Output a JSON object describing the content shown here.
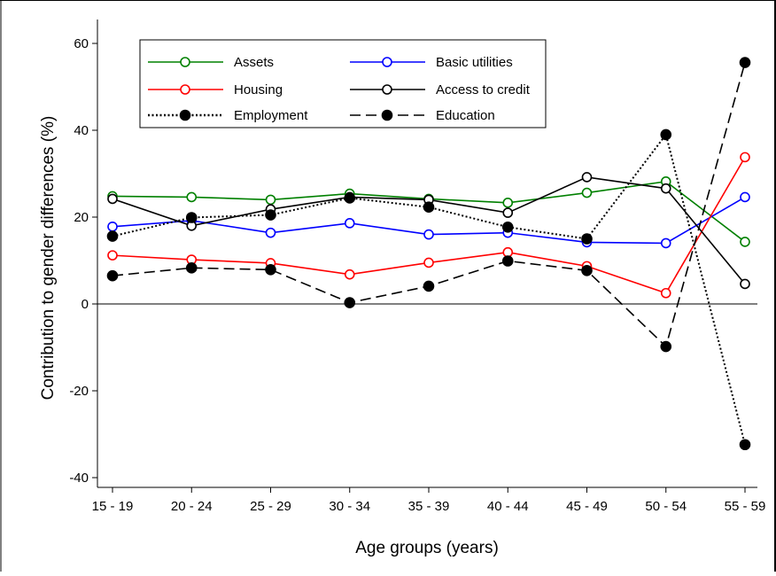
{
  "chart_data": {
    "type": "line",
    "xlabel": "Age groups (years)",
    "ylabel": "Contribution to gender differences (%)",
    "categories": [
      "15 - 19",
      "20 - 24",
      "25 - 29",
      "30 - 34",
      "35 - 39",
      "40 - 44",
      "45 - 49",
      "50 - 54",
      "55 - 59"
    ],
    "ylim": [
      -40,
      60
    ],
    "yticks": [
      -40,
      -20,
      0,
      20,
      40,
      60
    ],
    "ytick_labels": [
      "-40",
      "-20",
      "0",
      "20",
      "40",
      "60"
    ],
    "reference_line": 0,
    "grid": false,
    "legend_position": "top-left",
    "series": [
      {
        "name": "Assets",
        "color": "#008000",
        "marker": "open-circle",
        "line": "solid",
        "values": [
          24.8,
          24.6,
          24.0,
          25.4,
          24.2,
          23.3,
          25.6,
          28.2,
          14.3
        ]
      },
      {
        "name": "Basic utilities",
        "color": "#0000ff",
        "marker": "open-circle",
        "line": "solid",
        "values": [
          17.8,
          19.2,
          16.4,
          18.6,
          16.0,
          16.4,
          14.2,
          14.0,
          24.6
        ]
      },
      {
        "name": "Housing",
        "color": "#ff0000",
        "marker": "open-circle",
        "line": "solid",
        "values": [
          11.2,
          10.2,
          9.4,
          6.8,
          9.5,
          11.9,
          8.7,
          2.5,
          33.8
        ]
      },
      {
        "name": "Access to credit",
        "color": "#000000",
        "marker": "open-circle",
        "line": "solid",
        "values": [
          24.2,
          18.0,
          21.8,
          24.6,
          24.0,
          21.0,
          29.2,
          26.6,
          4.6
        ]
      },
      {
        "name": "Employment",
        "color": "#000000",
        "marker": "filled-circle",
        "line": "dotted",
        "values": [
          15.6,
          19.9,
          20.5,
          24.4,
          22.3,
          17.7,
          15.0,
          39.0,
          -32.4
        ]
      },
      {
        "name": "Education",
        "color": "#000000",
        "marker": "filled-circle",
        "line": "dashed",
        "values": [
          6.5,
          8.3,
          7.9,
          0.3,
          4.1,
          9.9,
          7.7,
          -9.8,
          55.6
        ]
      }
    ]
  }
}
